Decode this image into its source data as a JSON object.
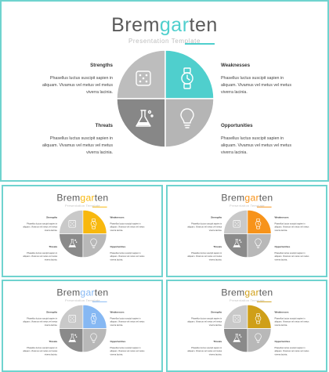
{
  "main": {
    "brand": {
      "pre": "Brem",
      "mid": "gar",
      "post": "ten"
    },
    "subtitle": "Presentation Template",
    "quadrants": [
      {
        "label": "Strengths",
        "text": [
          "Phasellus luctus suscipit sapien in",
          "aliquam. Vivamus vel metus vel metus",
          "viverra lacinia."
        ]
      },
      {
        "label": "Weaknesses",
        "text": [
          "Phasellus luctus suscipit sapien in",
          "aliquam. Vivamus vel metus vel metus",
          "viverra lacinia."
        ]
      },
      {
        "label": "Threats",
        "text": [
          "Phasellus luctus suscipit sapien in",
          "aliquam. Vivamus vel metus vel metus",
          "viverra lacinia."
        ]
      },
      {
        "label": "Opportunities",
        "text": [
          "Phasellus luctus suscipit sapien in",
          "aliquam. Vivamus vel metus vel metus",
          "viverra lacinia."
        ]
      }
    ],
    "icons": [
      "dice-icon",
      "watch-icon",
      "flask-icon",
      "lightbulb-icon"
    ]
  },
  "variants": [
    {
      "accent": "#4fcfcd",
      "tl": "#bdbdbd",
      "bl": "#878787",
      "br": "#b5b5b5"
    },
    {
      "accent": "#f8b80e",
      "tl": "#c9c9c9",
      "bl": "#8a8a8a",
      "br": "#b8b8b8"
    },
    {
      "accent": "#f7931a",
      "tl": "#c9c9c9",
      "bl": "#8a8a8a",
      "br": "#b8b8b8"
    },
    {
      "accent": "#86b8f3",
      "tl": "#c9c9c9",
      "bl": "#8a8a8a",
      "br": "#b8b8b8"
    },
    {
      "accent": "#cf9f18",
      "tl": "#c9c9c9",
      "bl": "#8a8a8a",
      "br": "#b8b8b8"
    }
  ]
}
